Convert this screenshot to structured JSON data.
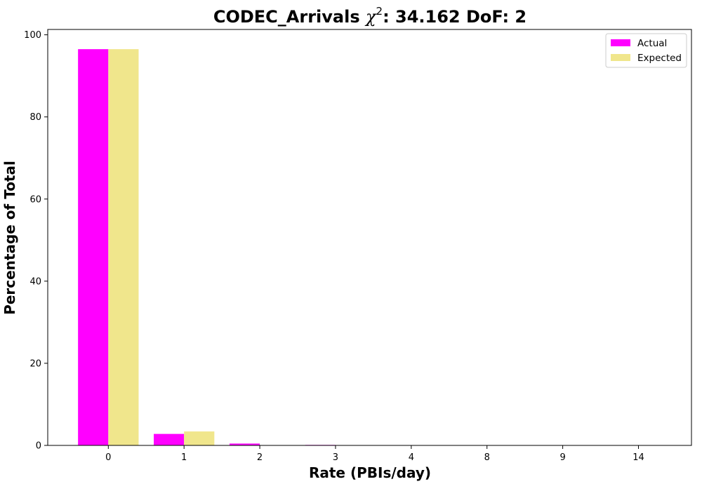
{
  "chart_data": {
    "type": "bar",
    "title_prefix": "CODEC_Arrivals ",
    "title_chi": "χ",
    "title_sup": "2",
    "title_suffix": ": 34.162 DoF: 2",
    "xlabel": "Rate (PBIs/day)",
    "ylabel": "Percentage of Total",
    "categories": [
      "0",
      "1",
      "2",
      "3",
      "4",
      "8",
      "9",
      "14"
    ],
    "series": [
      {
        "name": "Actual",
        "color": "#ff00ff",
        "values": [
          96.5,
          2.8,
          0.45,
          0.12,
          0.03,
          0.03,
          0.03,
          0.03
        ]
      },
      {
        "name": "Expected",
        "color": "#f0e68c",
        "values": [
          96.5,
          3.4,
          0.06,
          0.0,
          0.0,
          0.0,
          0.0,
          0.0
        ]
      }
    ],
    "ylim": [
      0,
      101.3
    ],
    "yticks": [
      0,
      20,
      40,
      60,
      80,
      100
    ],
    "grid": false,
    "legend_position": "top-right"
  }
}
